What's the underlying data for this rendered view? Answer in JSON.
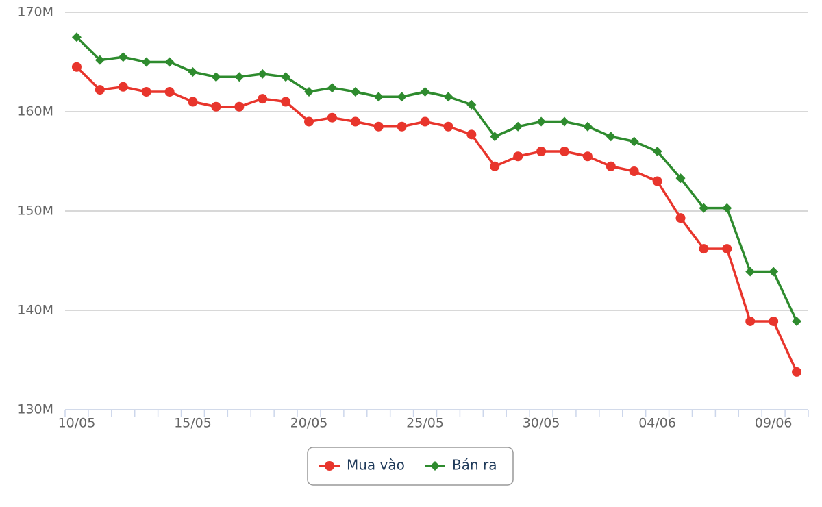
{
  "chart_data": {
    "type": "line",
    "categories": [
      "10/05",
      null,
      null,
      null,
      null,
      "15/05",
      null,
      null,
      null,
      null,
      "20/05",
      null,
      null,
      null,
      null,
      "25/05",
      null,
      null,
      null,
      null,
      "30/05",
      null,
      null,
      null,
      null,
      "04/06",
      null,
      null,
      null,
      null,
      "09/06",
      null
    ],
    "series": [
      {
        "name": "Mua vào",
        "color": "#e8352c",
        "marker": "circle",
        "values": [
          164500000,
          162200000,
          162500000,
          162000000,
          162000000,
          161000000,
          160500000,
          160500000,
          161300000,
          161000000,
          159000000,
          159400000,
          159000000,
          158500000,
          158500000,
          159000000,
          158500000,
          157700000,
          154500000,
          155500000,
          156000000,
          156000000,
          155500000,
          154500000,
          154000000,
          153000000,
          149300000,
          146200000,
          146200000,
          138900000,
          138900000,
          133800000
        ]
      },
      {
        "name": "Bán ra",
        "color": "#2e8b2e",
        "marker": "diamond",
        "values": [
          167500000,
          165200000,
          165500000,
          165000000,
          165000000,
          164000000,
          163500000,
          163500000,
          163800000,
          163500000,
          162000000,
          162400000,
          162000000,
          161500000,
          161500000,
          162000000,
          161500000,
          160700000,
          157500000,
          158500000,
          159000000,
          159000000,
          158500000,
          157500000,
          157000000,
          156000000,
          153300000,
          150300000,
          150300000,
          143900000,
          143900000,
          138900000
        ]
      }
    ],
    "ylim": [
      130000000,
      170000000
    ],
    "yticks": [
      {
        "value": 130000000,
        "label": "130M"
      },
      {
        "value": 140000000,
        "label": "140M"
      },
      {
        "value": 150000000,
        "label": "150M"
      },
      {
        "value": 160000000,
        "label": "160M"
      },
      {
        "value": 170000000,
        "label": "170M"
      }
    ],
    "grid": true
  }
}
